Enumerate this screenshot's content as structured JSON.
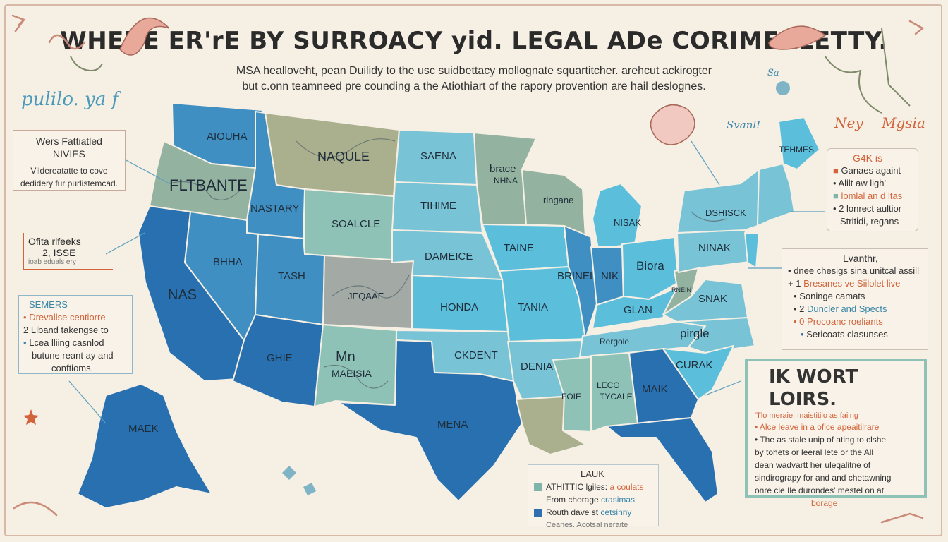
{
  "title": "WHERE ER'rE BY SURROACY yid. LEGAL ADe CORIMERLETTY.",
  "subtitle_lines": [
    "MSA healloveht, pean Duilidy to the usc suidbettacy mollognate squartitcher. arehcut ackirogter",
    "but c.onn teamneed pre counding a the Atiothiart of the rapory provention are hail deslognes."
  ],
  "scribbles": {
    "left_top": "pulilo. ya f",
    "right_top_a": "Ney",
    "right_top_b": "Mgsia",
    "right_top_c": "Svanl!",
    "right_small": "Sa"
  },
  "left_box_1": {
    "heading_1": "Wers Fattiatled",
    "heading_2": "NIVIES",
    "line_1": "Vildereatatte to cove",
    "line_2": "dedidery fur purlistemcad."
  },
  "left_note": {
    "line_1": "Ofita rlfeeks",
    "line_2": "2, ISSE",
    "line_3": "ioab eduals ery"
  },
  "left_box_2": {
    "heading": "SEMERS",
    "items": [
      {
        "marker": "•",
        "text": "Drevallse centiorre",
        "color": "orange"
      },
      {
        "marker": "2",
        "text": "Llband takengse to",
        "color": "dark"
      },
      {
        "marker": "•",
        "text": "Lcea lliing casnlod",
        "color": "blue"
      },
      {
        "marker": "",
        "text": "butune reant ay and",
        "color": "dark"
      },
      {
        "marker": "",
        "text": "conftioms.",
        "color": "dark"
      }
    ]
  },
  "right_box_1": {
    "heading": "G4K is",
    "items": [
      {
        "marker": "■",
        "text": "Ganaes againt",
        "color": "orange"
      },
      {
        "marker": "•",
        "text": "Alilt aw ligh'",
        "color": "dark"
      },
      {
        "marker": "■",
        "text": "lomlal an d ltas",
        "color": "mixed"
      },
      {
        "marker": "•",
        "text": "2 lonrect aultior",
        "color": "dark"
      },
      {
        "marker": "",
        "text": "Stritidi, regans",
        "color": "dark"
      }
    ]
  },
  "right_box_2": {
    "heading": "Lvanthr,",
    "items": [
      {
        "marker": "•",
        "text": "dnee chesigs sina unitcal assill",
        "color": "dark"
      },
      {
        "marker": "+ 1",
        "text": "Bresanes ve Siilolet live",
        "color": "orange"
      },
      {
        "marker": "•",
        "text": "Soninge camats",
        "color": "dark"
      },
      {
        "marker": "• 2",
        "text": "Duncler and Spects",
        "color": "mixed"
      },
      {
        "marker": "• 0",
        "text": "Procoanc roeliants",
        "color": "orange"
      },
      {
        "marker": "•",
        "text": "Sericoats clasunses",
        "color": "dark"
      }
    ]
  },
  "right_box_3": {
    "heading": "IK WORT LOIRS.",
    "lines": [
      {
        "text": "'Tlo meraie, maistitilo as faiing",
        "color": "orange"
      },
      {
        "text": "• Alce leave in a ofice apeaitilrare",
        "color": "orange"
      },
      {
        "text": "• The as stale unip of ating to clshe",
        "color": "dark"
      },
      {
        "text": "by tohets or leeral lete or the All",
        "color": "mixed"
      },
      {
        "text": "dean wadvartt her uleqalitne of",
        "color": "mixed"
      },
      {
        "text": "sindirograpy for and and chetawning",
        "color": "dark"
      },
      {
        "text": "onre cle Ile durondes' mestel on at",
        "color": "mixed"
      },
      {
        "text": "borage",
        "color": "orange"
      }
    ]
  },
  "legend": {
    "title": "LAUK",
    "items": [
      {
        "swatch": "#7fb5a8",
        "text": "ATHITTIC lgiles:",
        "extra": "a coulats"
      },
      {
        "swatch": "",
        "text": "From chorage",
        "extra": "crasimas"
      },
      {
        "swatch": "#2f6fb0",
        "text": "Routh dave st",
        "extra": "cetsinny"
      },
      {
        "swatch": "",
        "text": "Ceanes. Acotsal neraite",
        "extra": ""
      }
    ]
  },
  "states": {
    "wa": "AIOUHA",
    "or": "FLTBANTE",
    "mt": "NAQULE",
    "id": "NASTARY",
    "wy": "SOALCLE",
    "nv": "BHHA",
    "ca": "NAS",
    "ut": "TASH",
    "co": "JEQAAE",
    "az": "GHIE",
    "nm_1": "Mn",
    "nm_2": "MAEISIA",
    "ak": "MAEK",
    "nd": "SAENA",
    "sd": "TIHIME",
    "ne": "DAMEICE",
    "ks": "HONDA",
    "ok": "CKDENT",
    "tx": "MENA",
    "mn_1": "brace",
    "mn_2": "NHNA",
    "ia": "TAINE",
    "mo": "TANIA",
    "ar": "DENIA",
    "wi": "ringane",
    "il": "BRINEI",
    "mi": "NISAK",
    "in": "NIK",
    "oh": "Biora",
    "ky": "GLAN",
    "tn": "Rergole",
    "ms": "FOIE",
    "al_1": "LECO",
    "al_2": "TYCALE",
    "ga": "MAIK",
    "wv": "RNEIN",
    "va": "SNAK",
    "nc": "pirgle",
    "sc": "CURAK",
    "pa": "NINAK",
    "ny": "DSHISCK",
    "me": "TEHMES"
  },
  "colors": {
    "background": "#f6efe4",
    "teal": "#8fc2b7",
    "sage": "#93b3a0",
    "gray_green": "#a9b79d",
    "olive": "#aab08e",
    "light_blue": "#79c3d6",
    "sky": "#5bbfdc",
    "mid_blue": "#3f8fc3",
    "dark_blue": "#2870b0",
    "gray": "#a3aaa6",
    "accent_orange": "#d2633a"
  }
}
